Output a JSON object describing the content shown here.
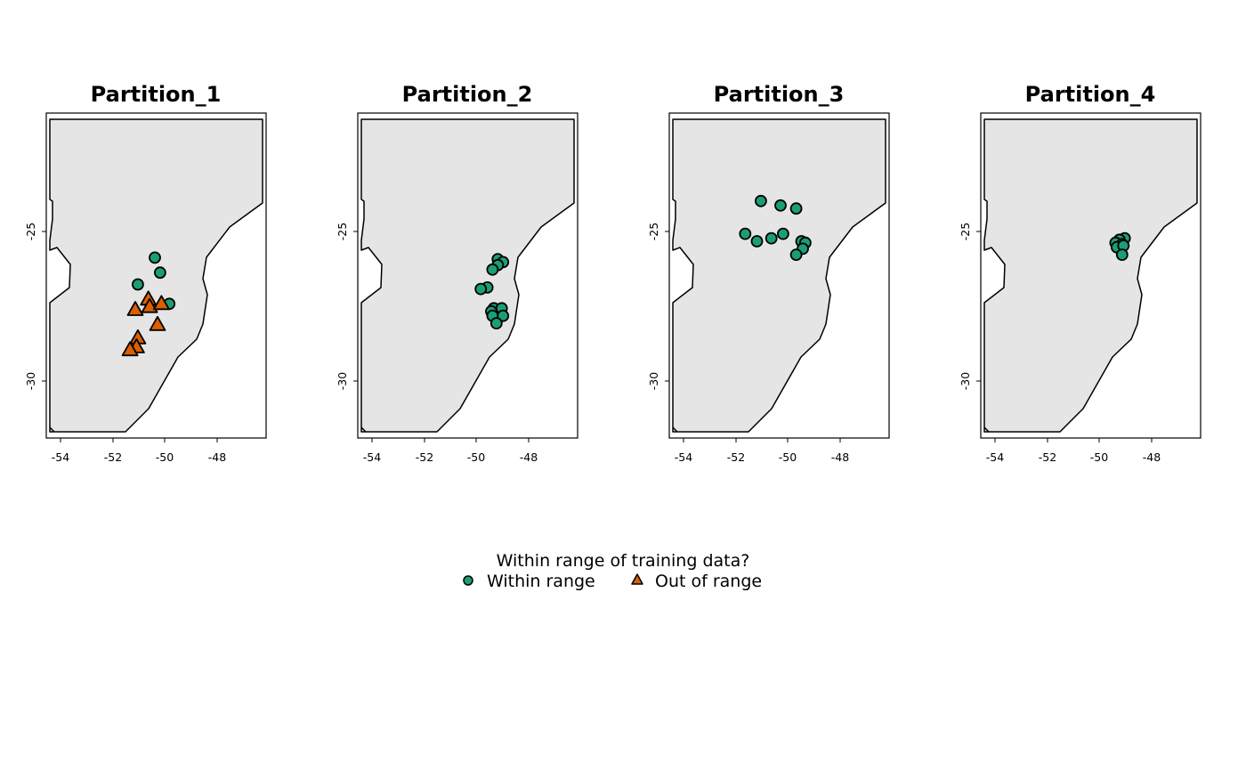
{
  "chart_data": {
    "type": "scatter",
    "panels": [
      {
        "title": "Partition_1",
        "points": [
          {
            "x": -50.35,
            "y": -25.85,
            "g": "within"
          },
          {
            "x": -50.15,
            "y": -26.35,
            "g": "within"
          },
          {
            "x": -51.0,
            "y": -26.75,
            "g": "within"
          },
          {
            "x": -49.8,
            "y": -27.4,
            "g": "within"
          },
          {
            "x": -50.6,
            "y": -27.25,
            "g": "out"
          },
          {
            "x": -50.55,
            "y": -27.5,
            "g": "out"
          },
          {
            "x": -50.1,
            "y": -27.4,
            "g": "out"
          },
          {
            "x": -51.1,
            "y": -27.6,
            "g": "out"
          },
          {
            "x": -50.25,
            "y": -28.1,
            "g": "out"
          },
          {
            "x": -51.0,
            "y": -28.55,
            "g": "out"
          },
          {
            "x": -51.05,
            "y": -28.85,
            "g": "out"
          },
          {
            "x": -51.3,
            "y": -28.95,
            "g": "out"
          }
        ]
      },
      {
        "title": "Partition_2",
        "points": [
          {
            "x": -49.15,
            "y": -25.9,
            "g": "within"
          },
          {
            "x": -48.95,
            "y": -26.0,
            "g": "within"
          },
          {
            "x": -49.15,
            "y": -26.1,
            "g": "within"
          },
          {
            "x": -49.35,
            "y": -26.25,
            "g": "within"
          },
          {
            "x": -49.55,
            "y": -26.85,
            "g": "within"
          },
          {
            "x": -49.8,
            "y": -26.9,
            "g": "within"
          },
          {
            "x": -49.3,
            "y": -27.55,
            "g": "within"
          },
          {
            "x": -49.0,
            "y": -27.55,
            "g": "within"
          },
          {
            "x": -49.4,
            "y": -27.65,
            "g": "within"
          },
          {
            "x": -49.35,
            "y": -27.8,
            "g": "within"
          },
          {
            "x": -48.95,
            "y": -27.8,
            "g": "within"
          },
          {
            "x": -49.2,
            "y": -28.05,
            "g": "within"
          }
        ]
      },
      {
        "title": "Partition_3",
        "points": [
          {
            "x": -51.0,
            "y": -23.95,
            "g": "within"
          },
          {
            "x": -50.25,
            "y": -24.1,
            "g": "within"
          },
          {
            "x": -49.65,
            "y": -24.2,
            "g": "within"
          },
          {
            "x": -51.6,
            "y": -25.05,
            "g": "within"
          },
          {
            "x": -51.15,
            "y": -25.3,
            "g": "within"
          },
          {
            "x": -50.6,
            "y": -25.2,
            "g": "within"
          },
          {
            "x": -50.15,
            "y": -25.05,
            "g": "within"
          },
          {
            "x": -49.45,
            "y": -25.3,
            "g": "within"
          },
          {
            "x": -49.3,
            "y": -25.35,
            "g": "within"
          },
          {
            "x": -49.4,
            "y": -25.55,
            "g": "within"
          },
          {
            "x": -49.65,
            "y": -25.75,
            "g": "within"
          }
        ]
      },
      {
        "title": "Partition_4",
        "points": [
          {
            "x": -49.0,
            "y": -25.2,
            "g": "within"
          },
          {
            "x": -49.2,
            "y": -25.25,
            "g": "within"
          },
          {
            "x": -49.35,
            "y": -25.35,
            "g": "within"
          },
          {
            "x": -49.1,
            "y": -25.4,
            "g": "within"
          },
          {
            "x": -49.3,
            "y": -25.5,
            "g": "within"
          },
          {
            "x": -49.05,
            "y": -25.45,
            "g": "within"
          },
          {
            "x": -49.1,
            "y": -25.75,
            "g": "within"
          }
        ]
      }
    ],
    "xticks": [
      -54,
      -52,
      -50,
      -48
    ],
    "yticks": [
      -25,
      -30
    ],
    "xlim": [
      -54.5,
      -46.1
    ],
    "ylim": [
      -31.9,
      -21.0
    ],
    "legend": {
      "title": "Within range of training data?",
      "entries": [
        {
          "key": "within",
          "label": "Within range",
          "shape": "circle"
        },
        {
          "key": "out",
          "label": "Out of range",
          "shape": "triangle"
        }
      ],
      "placement": "bottom-center"
    }
  },
  "colors": {
    "within": "#1b9e77",
    "out": "#d95f02",
    "land": "#e5e5e5",
    "outline": "#000000"
  }
}
